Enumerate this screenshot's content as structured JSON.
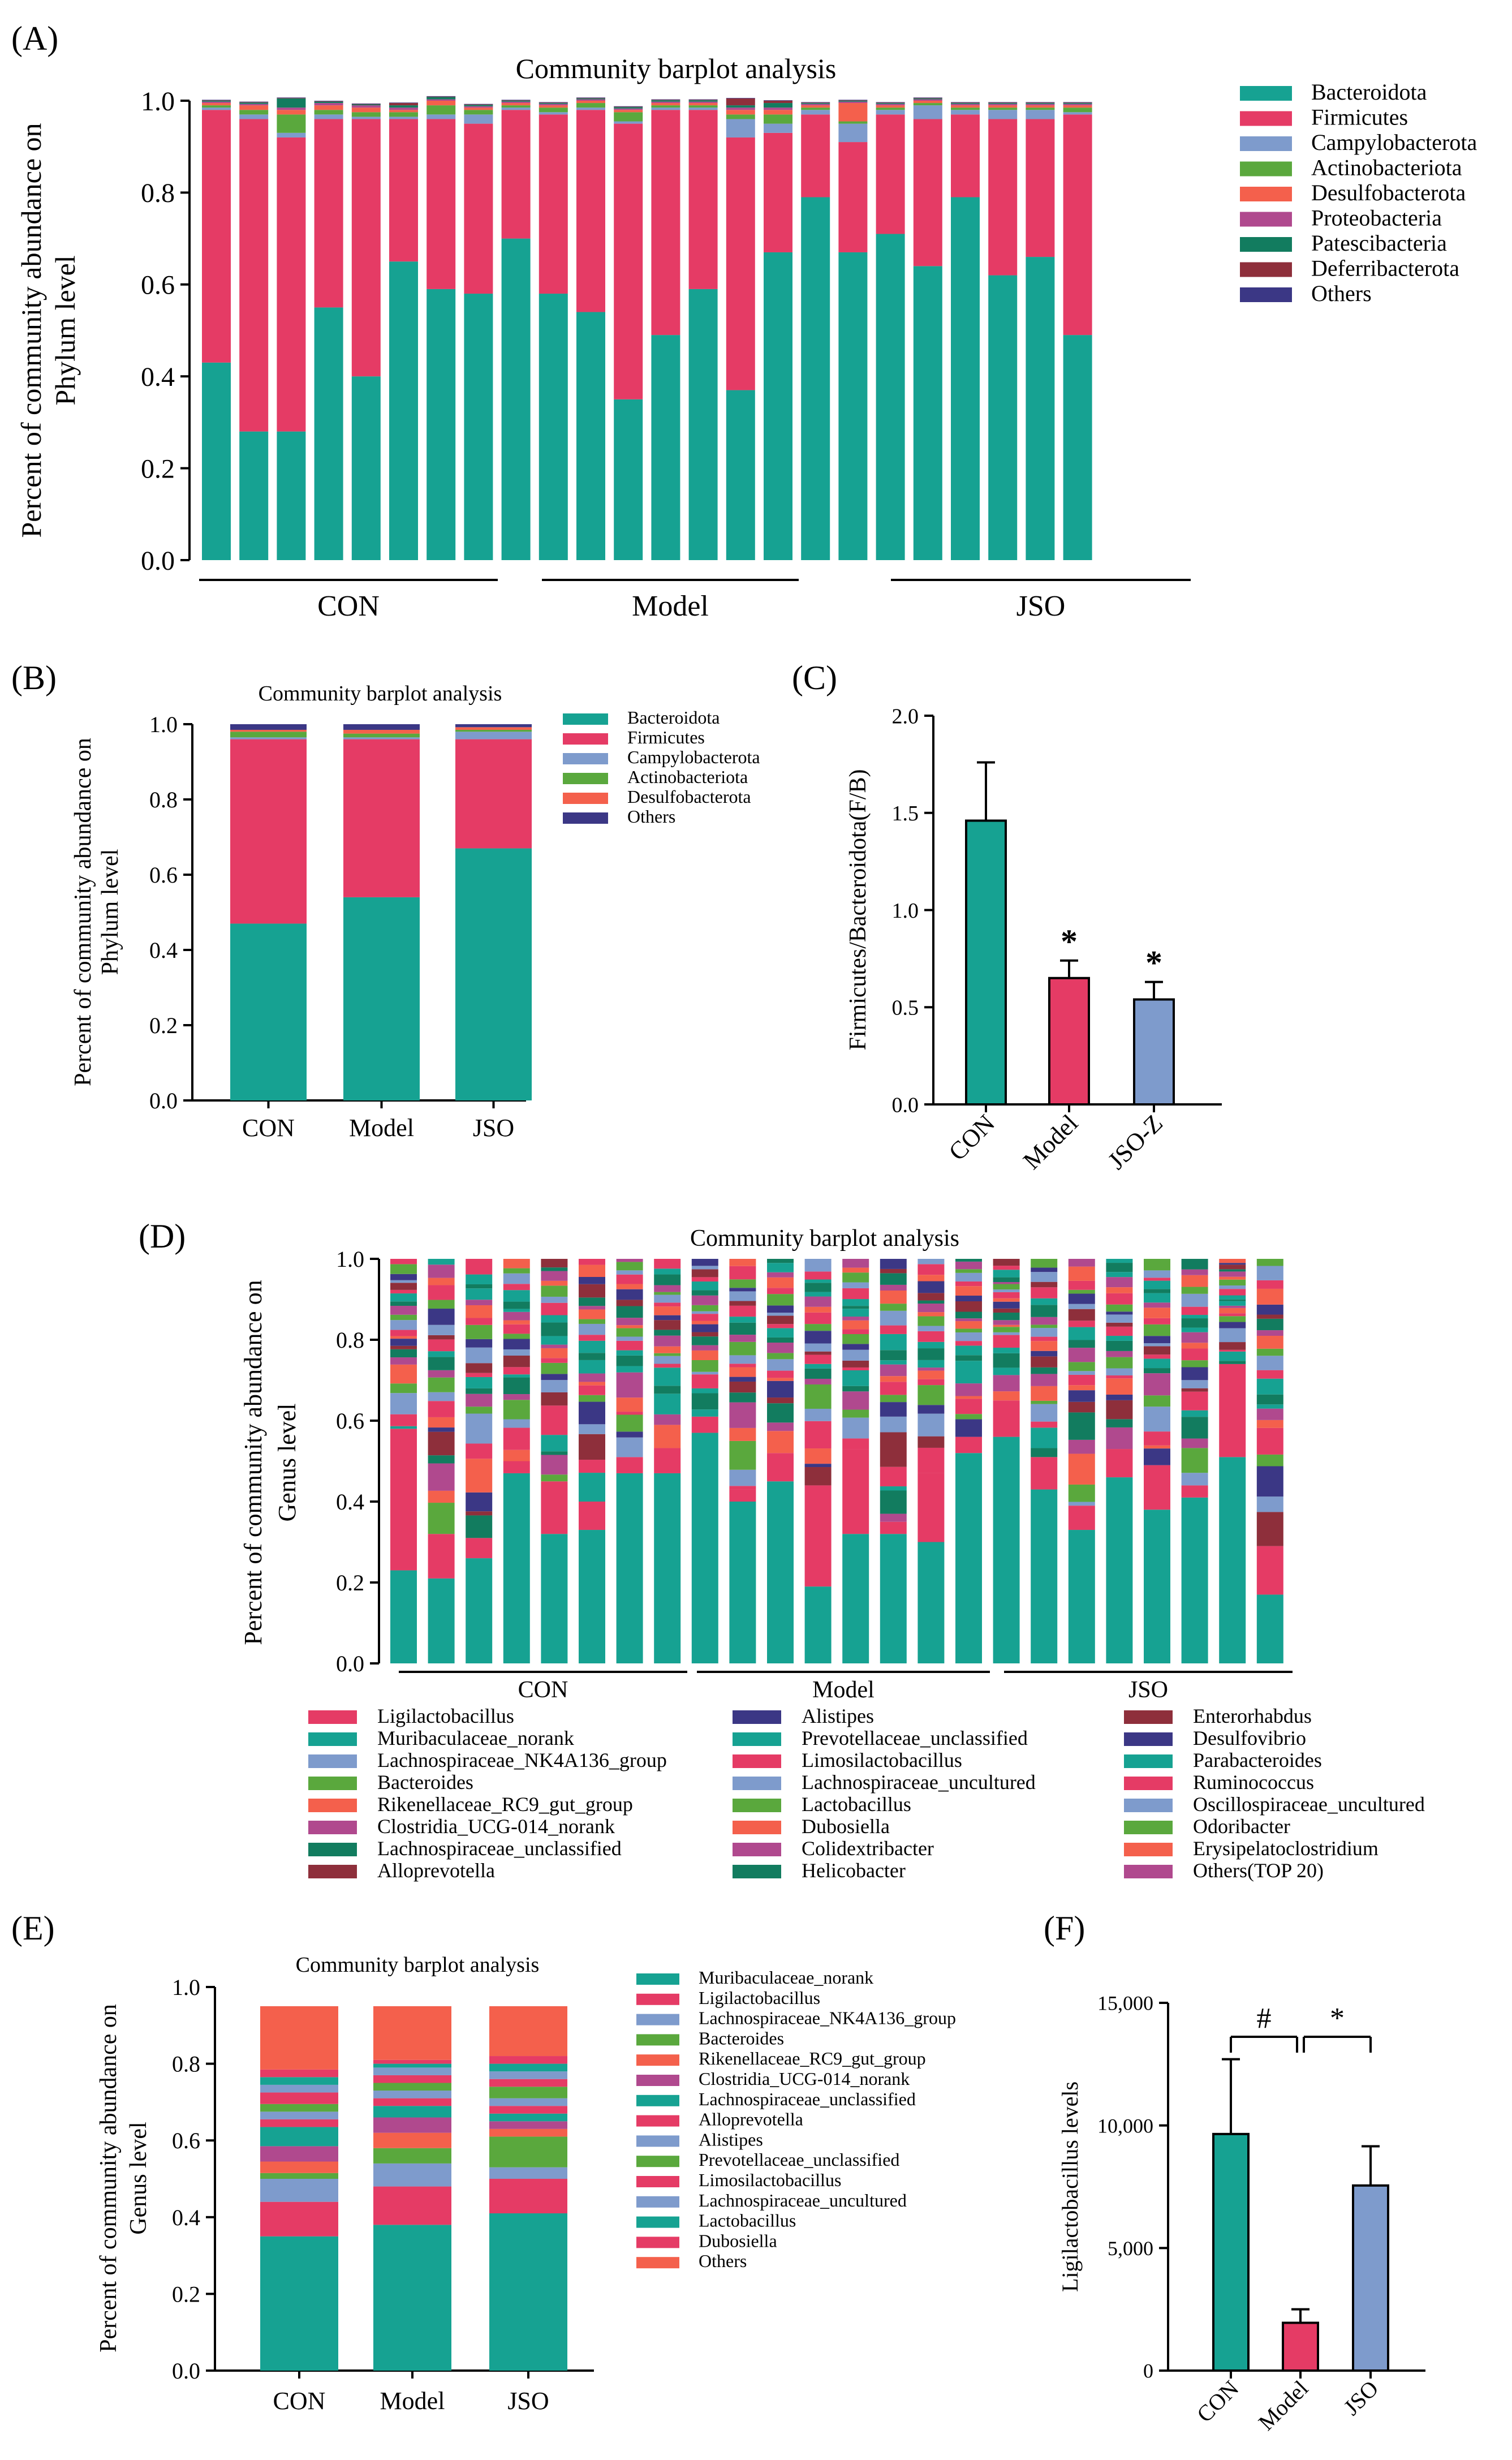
{
  "colors": {
    "Bacteroidota": "#16a292",
    "Firmicutes": "#e53b65",
    "Campylobacterota": "#7e9bcc",
    "Actinobacteriota": "#5aa83d",
    "Desulfobacterota": "#f4604c",
    "Proteobacteria": "#b0498e",
    "Patescibacteria": "#127c5f",
    "Deferribacterota": "#8e2f3b",
    "Others": "#3b3785",
    "CON": "#16a292",
    "Model": "#e53b65",
    "JSO": "#7e9bcc"
  },
  "chart_data": [
    {
      "panel": "(A)",
      "type": "bar",
      "stacked": true,
      "title": "Community barplot analysis",
      "ylabel": "Percent of community abundance on Phylum level",
      "ylim": [
        0,
        1.0
      ],
      "yticks": [
        "0.0",
        "0.2",
        "0.4",
        "0.6",
        "0.8",
        "1.0"
      ],
      "groups": [
        {
          "name": "CON",
          "from": 0,
          "to": 7
        },
        {
          "name": "Model",
          "from": 8,
          "to": 15
        },
        {
          "name": "JSO",
          "from": 16,
          "to": 23
        }
      ],
      "samples": 24,
      "series": [
        {
          "name": "Bacteroidota",
          "values": [
            0.43,
            0.28,
            0.28,
            0.55,
            0.4,
            0.65,
            0.59,
            0.58,
            0.7,
            0.58,
            0.54,
            0.35,
            0.49,
            0.59,
            0.37,
            0.67,
            0.79,
            0.67,
            0.71,
            0.64,
            0.79,
            0.62,
            0.66,
            0.49
          ]
        },
        {
          "name": "Firmicutes",
          "values": [
            0.55,
            0.68,
            0.64,
            0.41,
            0.56,
            0.31,
            0.37,
            0.37,
            0.28,
            0.39,
            0.44,
            0.6,
            0.49,
            0.39,
            0.55,
            0.26,
            0.18,
            0.24,
            0.26,
            0.32,
            0.18,
            0.34,
            0.3,
            0.48
          ]
        },
        {
          "name": "Campylobacterota",
          "values": [
            0.005,
            0.01,
            0.01,
            0.01,
            0.005,
            0.005,
            0.01,
            0.02,
            0.005,
            0.005,
            0.005,
            0.005,
            0.005,
            0.005,
            0.04,
            0.02,
            0.01,
            0.04,
            0.01,
            0.03,
            0.01,
            0.02,
            0.02,
            0.005
          ]
        },
        {
          "name": "Actinobacteriota",
          "values": [
            0.005,
            0.01,
            0.04,
            0.01,
            0.01,
            0.01,
            0.02,
            0.01,
            0.005,
            0.01,
            0.01,
            0.02,
            0.005,
            0.005,
            0.01,
            0.02,
            0.005,
            0.005,
            0.005,
            0.005,
            0.005,
            0.005,
            0.005,
            0.01
          ]
        },
        {
          "name": "Desulfobacterota",
          "values": [
            0.005,
            0.01,
            0.01,
            0.01,
            0.01,
            0.005,
            0.01,
            0.005,
            0.005,
            0.005,
            0.005,
            0.005,
            0.005,
            0.005,
            0.01,
            0.01,
            0.005,
            0.04,
            0.005,
            0.005,
            0.005,
            0.005,
            0.005,
            0.005
          ]
        },
        {
          "name": "Proteobacteria",
          "values": [
            0.003,
            0.003,
            0.005,
            0.005,
            0.005,
            0.005,
            0.003,
            0.003,
            0.003,
            0.003,
            0.003,
            0.003,
            0.003,
            0.003,
            0.005,
            0.005,
            0.003,
            0.003,
            0.003,
            0.003,
            0.003,
            0.003,
            0.003,
            0.003
          ]
        },
        {
          "name": "Patescibacteria",
          "values": [
            0.002,
            0.003,
            0.02,
            0.003,
            0.002,
            0.005,
            0.005,
            0.003,
            0.002,
            0.002,
            0.002,
            0.003,
            0.003,
            0.003,
            0.005,
            0.01,
            0.002,
            0.002,
            0.002,
            0.002,
            0.002,
            0.002,
            0.002,
            0.002
          ]
        },
        {
          "name": "Deferribacterota",
          "values": [
            0.001,
            0.001,
            0.001,
            0.001,
            0.001,
            0.005,
            0.001,
            0.001,
            0.001,
            0.001,
            0.001,
            0.001,
            0.001,
            0.001,
            0.015,
            0.005,
            0.001,
            0.001,
            0.001,
            0.001,
            0.001,
            0.001,
            0.001,
            0.001
          ]
        },
        {
          "name": "Others",
          "values": [
            0.001,
            0.001,
            0.001,
            0.001,
            0.001,
            0.001,
            0.001,
            0.001,
            0.001,
            0.001,
            0.001,
            0.001,
            0.001,
            0.001,
            0.001,
            0.001,
            0.001,
            0.001,
            0.001,
            0.001,
            0.001,
            0.001,
            0.001,
            0.001
          ]
        }
      ],
      "legend": [
        "Bacteroidota",
        "Firmicutes",
        "Campylobacterota",
        "Actinobacteriota",
        "Desulfobacterota",
        "Proteobacteria",
        "Patescibacteria",
        "Deferribacterota",
        "Others"
      ]
    },
    {
      "panel": "(B)",
      "type": "bar",
      "stacked": true,
      "title": "Community barplot analysis",
      "ylabel": "Percent of community abundance on Phylum level",
      "ylim": [
        0,
        1.0
      ],
      "yticks": [
        "0.0",
        "0.2",
        "0.4",
        "0.6",
        "0.8",
        "1.0"
      ],
      "categories": [
        "CON",
        "Model",
        "JSO"
      ],
      "series": [
        {
          "name": "Bacteroidota",
          "values": [
            0.47,
            0.54,
            0.67
          ]
        },
        {
          "name": "Firmicutes",
          "values": [
            0.49,
            0.42,
            0.29
          ]
        },
        {
          "name": "Campylobacterota",
          "values": [
            0.005,
            0.005,
            0.02
          ]
        },
        {
          "name": "Actinobacteriota",
          "values": [
            0.015,
            0.01,
            0.005
          ]
        },
        {
          "name": "Desulfobacterota",
          "values": [
            0.005,
            0.01,
            0.007
          ]
        },
        {
          "name": "Others",
          "values": [
            0.015,
            0.015,
            0.008
          ]
        }
      ],
      "legend": [
        "Bacteroidota",
        "Firmicutes",
        "Campylobacterota",
        "Actinobacteriota",
        "Desulfobacterota",
        "Others"
      ]
    },
    {
      "panel": "(C)",
      "type": "bar",
      "ylabel": "Firmicutes/Bacteroidota(F/B)",
      "ylim": [
        0,
        2.0
      ],
      "yticks": [
        "0.0",
        "0.5",
        "1.0",
        "1.5",
        "2.0"
      ],
      "categories": [
        "CON",
        "Model",
        "JSO-Z"
      ],
      "values": [
        1.46,
        0.65,
        0.54
      ],
      "errors": [
        0.3,
        0.09,
        0.09
      ],
      "annotations": [
        "",
        "*",
        "*"
      ]
    },
    {
      "panel": "(D)",
      "type": "bar",
      "stacked": true,
      "title": "Community barplot analysis",
      "ylabel": "Percent of community abundance on Genus level",
      "ylim": [
        0,
        1.0
      ],
      "yticks": [
        "0.0",
        "0.2",
        "0.4",
        "0.6",
        "0.8",
        "1.0"
      ],
      "groups": [
        {
          "name": "CON",
          "from": 0,
          "to": 7
        },
        {
          "name": "Model",
          "from": 8,
          "to": 15
        },
        {
          "name": "JSO",
          "from": 16,
          "to": 23
        }
      ],
      "samples": 24,
      "base": [
        0.23,
        0.21,
        0.26,
        0.47,
        0.32,
        0.33,
        0.47,
        0.47,
        0.57,
        0.4,
        0.45,
        0.19,
        0.32,
        0.32,
        0.3,
        0.52,
        0.56,
        0.43,
        0.33,
        0.46,
        0.38,
        0.41,
        0.51,
        0.17
      ],
      "second": [
        0.35,
        0.11,
        0.05,
        0.03,
        0.13,
        0.07,
        0.04,
        0.03,
        0.04,
        0.03,
        0.07,
        0.25,
        0.21,
        0.03,
        0.17,
        0.04,
        0.09,
        0.08,
        0.06,
        0.07,
        0.11,
        0.03,
        0.23,
        0.12
      ],
      "legend": [
        "Ligilactobacillus",
        "Muribaculaceae_norank",
        "Lachnospiraceae_NK4A136_group",
        "Bacteroides",
        "Rikenellaceae_RC9_gut_group",
        "Clostridia_UCG-014_norank",
        "Lachnospiraceae_unclassified",
        "Alloprevotella",
        "Alistipes",
        "Prevotellaceae_unclassified",
        "Limosilactobacillus",
        "Lachnospiraceae_uncultured",
        "Lactobacillus",
        "Dubosiella",
        "Colidextribacter",
        "Helicobacter",
        "Enterorhabdus",
        "Desulfovibrio",
        "Parabacteroides",
        "Ruminococcus",
        "Oscillospiraceae_uncultured",
        "Odoribacter",
        "Erysipelatoclostridium",
        "Others(TOP 20)"
      ],
      "legend_colors": [
        "#e53b65",
        "#16a292",
        "#7e9bcc",
        "#5aa83d",
        "#f4604c",
        "#b0498e",
        "#127c5f",
        "#8e2f3b",
        "#3b3785",
        "#16a292",
        "#e53b65",
        "#7e9bcc",
        "#5aa83d",
        "#f4604c",
        "#b0498e",
        "#127c5f",
        "#8e2f3b",
        "#3b3785",
        "#16a292",
        "#e53b65",
        "#7e9bcc",
        "#5aa83d",
        "#f4604c",
        "#b0498e"
      ]
    },
    {
      "panel": "(E)",
      "type": "bar",
      "stacked": true,
      "title": "Community barplot analysis",
      "ylabel": "Percent of community abundance on Genus level",
      "ylim": [
        0,
        1.0
      ],
      "yticks": [
        "0.0",
        "0.2",
        "0.4",
        "0.6",
        "0.8",
        "1.0"
      ],
      "categories": [
        "CON",
        "Model",
        "JSO"
      ],
      "series": [
        {
          "name": "Muribaculaceae_norank",
          "values": [
            0.35,
            0.38,
            0.41
          ]
        },
        {
          "name": "Ligilactobacillus",
          "values": [
            0.09,
            0.1,
            0.09
          ]
        },
        {
          "name": "Lachnospiraceae_NK4A136_group",
          "values": [
            0.06,
            0.06,
            0.03
          ]
        },
        {
          "name": "Bacteroides",
          "values": [
            0.015,
            0.04,
            0.08
          ]
        },
        {
          "name": "Rikenellaceae_RC9_gut_group",
          "values": [
            0.03,
            0.04,
            0.02
          ]
        },
        {
          "name": "Clostridia_UCG-014_norank",
          "values": [
            0.04,
            0.04,
            0.02
          ]
        },
        {
          "name": "Lachnospiraceae_unclassified",
          "values": [
            0.05,
            0.03,
            0.02
          ]
        },
        {
          "name": "Alloprevotella",
          "values": [
            0.02,
            0.02,
            0.02
          ]
        },
        {
          "name": "Alistipes",
          "values": [
            0.02,
            0.02,
            0.02
          ]
        },
        {
          "name": "Prevotellaceae_unclassified",
          "values": [
            0.02,
            0.02,
            0.03
          ]
        },
        {
          "name": "Limosilactobacillus",
          "values": [
            0.03,
            0.02,
            0.02
          ]
        },
        {
          "name": "Lachnospiraceae_uncultured",
          "values": [
            0.02,
            0.02,
            0.02
          ]
        },
        {
          "name": "Lactobacillus",
          "values": [
            0.02,
            0.01,
            0.02
          ]
        },
        {
          "name": "Dubosiella",
          "values": [
            0.02,
            0.01,
            0.02
          ]
        },
        {
          "name": "Others",
          "values": [
            0.165,
            0.14,
            0.13
          ]
        }
      ],
      "legend": [
        "Muribaculaceae_norank",
        "Ligilactobacillus",
        "Lachnospiraceae_NK4A136_group",
        "Bacteroides",
        "Rikenellaceae_RC9_gut_group",
        "Clostridia_UCG-014_norank",
        "Lachnospiraceae_unclassified",
        "Alloprevotella",
        "Alistipes",
        "Prevotellaceae_unclassified",
        "Limosilactobacillus",
        "Lachnospiraceae_uncultured",
        "Lactobacillus",
        "Dubosiella",
        "Others"
      ],
      "legend_colors": [
        "#16a292",
        "#e53b65",
        "#7e9bcc",
        "#5aa83d",
        "#f4604c",
        "#b0498e",
        "#16a292",
        "#e53b65",
        "#7e9bcc",
        "#5aa83d",
        "#e53b65",
        "#7e9bcc",
        "#16a292",
        "#e53b65",
        "#f4604c"
      ]
    },
    {
      "panel": "(F)",
      "type": "bar",
      "ylabel": "Ligilactobacillus levels",
      "ylim": [
        0,
        15000
      ],
      "yticks": [
        "0",
        "5,000",
        "10,000",
        "15,000"
      ],
      "categories": [
        "CON",
        "Model",
        "JSO"
      ],
      "values": [
        9650,
        1950,
        7550
      ],
      "errors": [
        3050,
        550,
        1600
      ],
      "brackets": [
        {
          "from": 0,
          "to": 1,
          "label": "#"
        },
        {
          "from": 1,
          "to": 2,
          "label": "*"
        }
      ]
    }
  ]
}
